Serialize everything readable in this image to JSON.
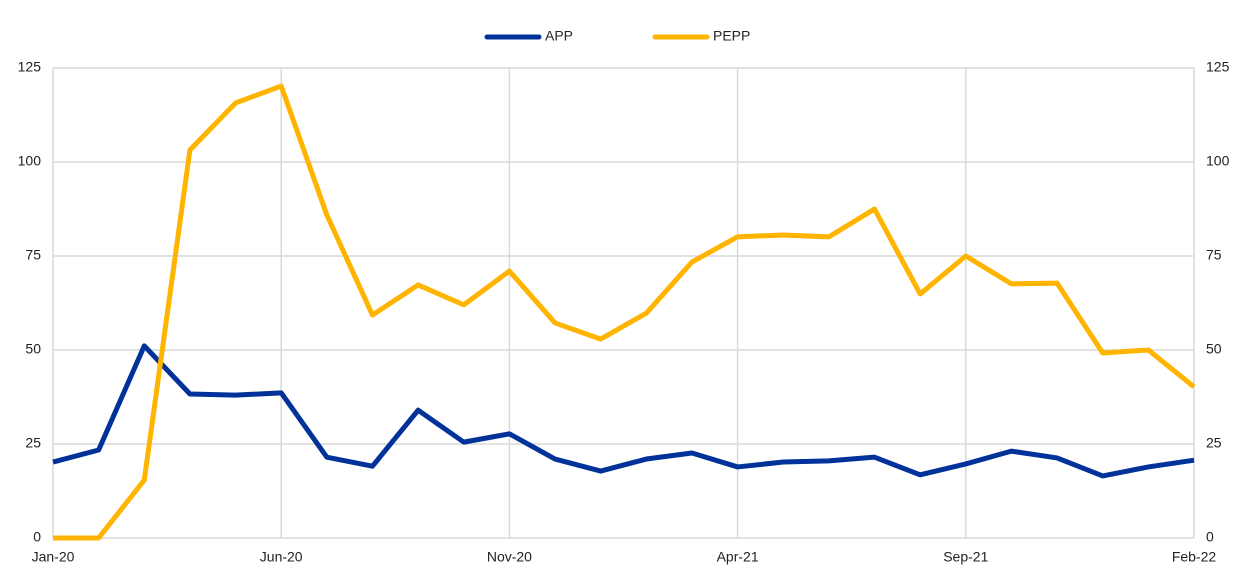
{
  "chart_data": {
    "type": "line",
    "categories": [
      "Jan-20",
      null,
      null,
      null,
      null,
      "Jun-20",
      null,
      null,
      null,
      null,
      "Nov-20",
      null,
      null,
      null,
      null,
      "Apr-21",
      null,
      null,
      null,
      null,
      "Sep-21",
      null,
      null,
      null,
      null,
      "Feb-22"
    ],
    "series": [
      {
        "name": "APP",
        "color": "#003299",
        "values": [
          20.2,
          23.4,
          51.1,
          38.3,
          38.0,
          38.6,
          21.5,
          19.1,
          34.0,
          25.5,
          27.7,
          21.0,
          17.8,
          21.0,
          22.6,
          18.9,
          20.2,
          20.5,
          21.5,
          16.8,
          19.7,
          23.1,
          21.3,
          16.5,
          18.9,
          20.7
        ]
      },
      {
        "name": "PEPP",
        "color": "#ffb400",
        "values": [
          0,
          0,
          15.4,
          103.2,
          115.7,
          120.2,
          85.9,
          59.3,
          67.3,
          62.0,
          71.0,
          57.2,
          52.9,
          59.8,
          73.4,
          80.1,
          80.6,
          80.1,
          87.5,
          64.9,
          75.0,
          67.6,
          67.8,
          49.2,
          50.0,
          40.2
        ]
      }
    ],
    "ylim": [
      0,
      125
    ],
    "yticks": [
      0,
      25,
      50,
      75,
      100,
      125
    ],
    "y2lim": [
      0,
      125
    ],
    "y2ticks": [
      0,
      25,
      50,
      75,
      100,
      125
    ],
    "grid": true,
    "legend": "top"
  }
}
